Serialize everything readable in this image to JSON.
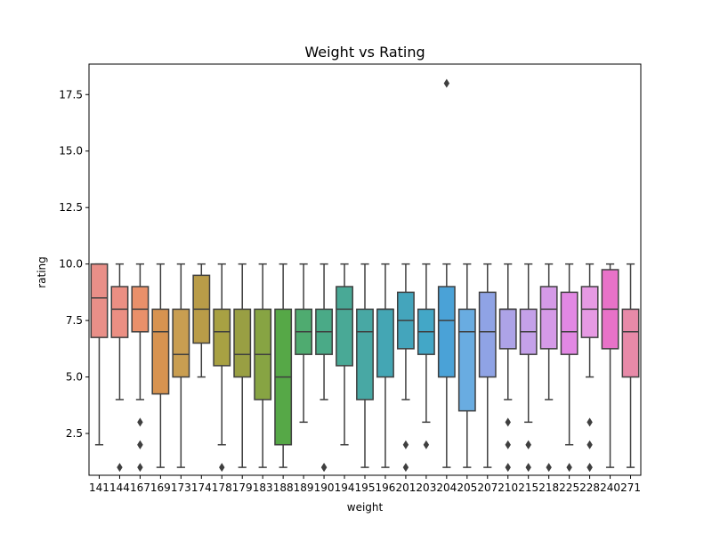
{
  "chart_data": {
    "type": "box",
    "title": "Weight vs Rating",
    "xlabel": "weight",
    "ylabel": "rating",
    "ylim": [
      0.65,
      18.85
    ],
    "yticks": [
      2.5,
      5.0,
      7.5,
      10.0,
      12.5,
      15.0,
      17.5
    ],
    "ytick_labels": [
      "2.5",
      "5.0",
      "7.5",
      "10.0",
      "12.5",
      "15.0",
      "17.5"
    ],
    "grid": false,
    "categories": [
      "141",
      "144",
      "167",
      "169",
      "173",
      "174",
      "178",
      "179",
      "183",
      "188",
      "189",
      "190",
      "194",
      "195",
      "196",
      "201",
      "203",
      "204",
      "205",
      "207",
      "210",
      "215",
      "218",
      "225",
      "228",
      "240",
      "271"
    ],
    "boxes": [
      {
        "whislo": 2,
        "q1": 6.75,
        "med": 8.5,
        "q3": 10,
        "whishi": 10,
        "fliers": []
      },
      {
        "whislo": 4,
        "q1": 6.75,
        "med": 8,
        "q3": 9,
        "whishi": 10,
        "fliers": [
          1
        ]
      },
      {
        "whislo": 4,
        "q1": 7,
        "med": 8,
        "q3": 9,
        "whishi": 10,
        "fliers": [
          1,
          2,
          2,
          3
        ]
      },
      {
        "whislo": 1,
        "q1": 4.25,
        "med": 7,
        "q3": 8,
        "whishi": 10,
        "fliers": []
      },
      {
        "whislo": 1,
        "q1": 5,
        "med": 6,
        "q3": 8,
        "whishi": 10,
        "fliers": []
      },
      {
        "whislo": 5,
        "q1": 6.5,
        "med": 8,
        "q3": 9.5,
        "whishi": 10,
        "fliers": []
      },
      {
        "whislo": 2,
        "q1": 5.5,
        "med": 7,
        "q3": 8,
        "whishi": 10,
        "fliers": [
          1
        ]
      },
      {
        "whislo": 1,
        "q1": 5,
        "med": 6,
        "q3": 8,
        "whishi": 10,
        "fliers": []
      },
      {
        "whislo": 1,
        "q1": 4,
        "med": 6,
        "q3": 8,
        "whishi": 10,
        "fliers": []
      },
      {
        "whislo": 1,
        "q1": 2,
        "med": 5,
        "q3": 8,
        "whishi": 10,
        "fliers": []
      },
      {
        "whislo": 3,
        "q1": 6,
        "med": 7,
        "q3": 8,
        "whishi": 10,
        "fliers": []
      },
      {
        "whislo": 4,
        "q1": 6,
        "med": 7,
        "q3": 8,
        "whishi": 10,
        "fliers": [
          1,
          1
        ]
      },
      {
        "whislo": 2,
        "q1": 5.5,
        "med": 8,
        "q3": 9,
        "whishi": 10,
        "fliers": []
      },
      {
        "whislo": 1,
        "q1": 4,
        "med": 7,
        "q3": 8,
        "whishi": 10,
        "fliers": []
      },
      {
        "whislo": 1,
        "q1": 5,
        "med": 8,
        "q3": 8,
        "whishi": 10,
        "fliers": []
      },
      {
        "whislo": 4,
        "q1": 6.25,
        "med": 7.5,
        "q3": 8.75,
        "whishi": 10,
        "fliers": [
          1,
          2
        ]
      },
      {
        "whislo": 3,
        "q1": 6,
        "med": 7,
        "q3": 8,
        "whishi": 10,
        "fliers": [
          2
        ]
      },
      {
        "whislo": 1,
        "q1": 5,
        "med": 7.5,
        "q3": 9,
        "whishi": 10,
        "fliers": [
          18
        ]
      },
      {
        "whislo": 1,
        "q1": 3.5,
        "med": 7,
        "q3": 8,
        "whishi": 10,
        "fliers": []
      },
      {
        "whislo": 1,
        "q1": 5,
        "med": 7,
        "q3": 8.75,
        "whishi": 10,
        "fliers": []
      },
      {
        "whislo": 4,
        "q1": 6.25,
        "med": 8,
        "q3": 8,
        "whishi": 10,
        "fliers": [
          1,
          2,
          3
        ]
      },
      {
        "whislo": 3,
        "q1": 6,
        "med": 7,
        "q3": 8,
        "whishi": 10,
        "fliers": [
          1,
          2,
          2
        ]
      },
      {
        "whislo": 4,
        "q1": 6.25,
        "med": 8,
        "q3": 9,
        "whishi": 10,
        "fliers": [
          1
        ]
      },
      {
        "whislo": 2,
        "q1": 6,
        "med": 7,
        "q3": 8.75,
        "whishi": 10,
        "fliers": [
          1
        ]
      },
      {
        "whislo": 5,
        "q1": 6.75,
        "med": 8,
        "q3": 9,
        "whishi": 10,
        "fliers": [
          1,
          1,
          2,
          3
        ]
      },
      {
        "whislo": 1,
        "q1": 6.25,
        "med": 8,
        "q3": 9.75,
        "whishi": 10,
        "fliers": []
      },
      {
        "whislo": 1,
        "q1": 5,
        "med": 7,
        "q3": 8,
        "whishi": 10,
        "fliers": []
      }
    ],
    "colors": [
      "#e98f88",
      "#eb8f83",
      "#e9906a",
      "#d79350",
      "#c99e51",
      "#b99c48",
      "#a8a143",
      "#999f43",
      "#87a443",
      "#56a847",
      "#4fab70",
      "#4aaa87",
      "#49a996",
      "#48a8a4",
      "#44a6b4",
      "#44a5bc",
      "#43a7c7",
      "#4aa2d7",
      "#69ace1",
      "#8fa3e5",
      "#ada3e7",
      "#c4a1e9",
      "#d59ae7",
      "#e288e3",
      "#e69ae3",
      "#e872c8",
      "#e78aa8"
    ],
    "line_color": "#3f3f3f"
  }
}
